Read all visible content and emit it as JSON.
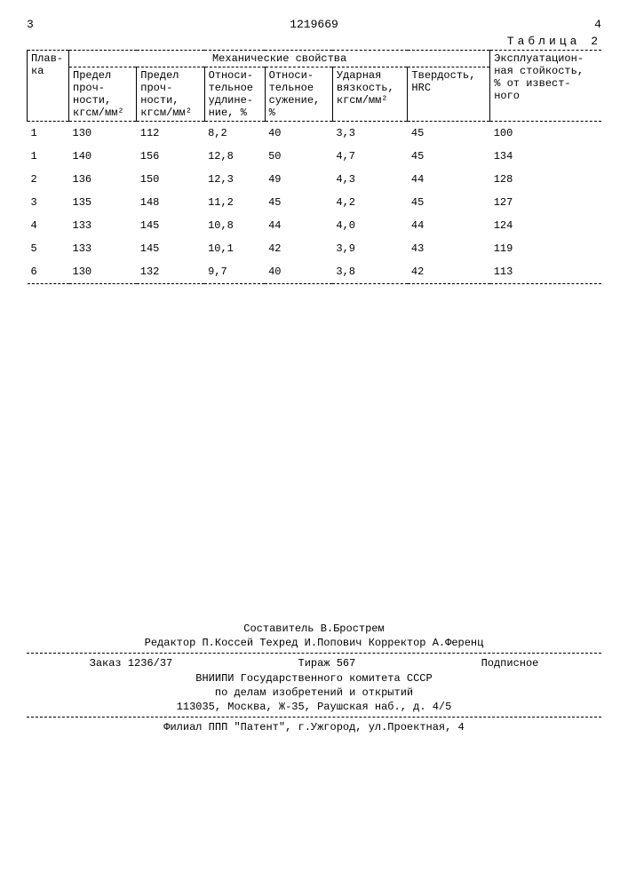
{
  "header": {
    "page_left": "3",
    "doc_number": "1219669",
    "page_right": "4",
    "table_label": "Таблица 2"
  },
  "table": {
    "col_plavka": "Плав-\nка",
    "group_mech": "Механические свойства",
    "col_ekspl": "Эксплуатацион-\nная стойкость,\n% от извест-\nного",
    "sub": {
      "c1": "Предел\nпроч-\nности,\nкгсм/мм²",
      "c2": "Предел\nпроч-\nности,\nкгсм/мм²",
      "c3": "Относи-\nтельное\nудлине-\nние, %",
      "c4": "Относи-\nтельное\nсужение,\n%",
      "c5": "Ударная\nвязкость,\nкгсм/мм²",
      "c6": "Твердость,\nHRC"
    },
    "rows": [
      {
        "n": "1",
        "v1": "130",
        "v2": "112",
        "v3": "8,2",
        "v4": "40",
        "v5": "3,3",
        "v6": "45",
        "v7": "100"
      },
      {
        "n": "1",
        "v1": "140",
        "v2": "156",
        "v3": "12,8",
        "v4": "50",
        "v5": "4,7",
        "v6": "45",
        "v7": "134"
      },
      {
        "n": "2",
        "v1": "136",
        "v2": "150",
        "v3": "12,3",
        "v4": "49",
        "v5": "4,3",
        "v6": "44",
        "v7": "128"
      },
      {
        "n": "3",
        "v1": "135",
        "v2": "148",
        "v3": "11,2",
        "v4": "45",
        "v5": "4,2",
        "v6": "45",
        "v7": "127"
      },
      {
        "n": "4",
        "v1": "133",
        "v2": "145",
        "v3": "10,8",
        "v4": "44",
        "v5": "4,0",
        "v6": "44",
        "v7": "124"
      },
      {
        "n": "5",
        "v1": "133",
        "v2": "145",
        "v3": "10,1",
        "v4": "42",
        "v5": "3,9",
        "v6": "43",
        "v7": "119"
      },
      {
        "n": "6",
        "v1": "130",
        "v2": "132",
        "v3": "9,7",
        "v4": "40",
        "v5": "3,8",
        "v6": "42",
        "v7": "113"
      }
    ]
  },
  "footer": {
    "compiler": "Составитель В.Брострем",
    "editors": "Редактор П.Коссей    Техред И.Попович Корректор А.Ференц",
    "order": "Заказ 1236/37",
    "tirazh": "Тираж 567",
    "podpis": "Подписное",
    "org1": "ВНИИПИ Государственного комитета СССР",
    "org2": "по делам изобретений и открытий",
    "addr1": "113035, Москва, Ж-35, Раушская наб., д. 4/5",
    "addr2": "Филиал ППП \"Патент\", г.Ужгород, ул.Проектная, 4"
  }
}
